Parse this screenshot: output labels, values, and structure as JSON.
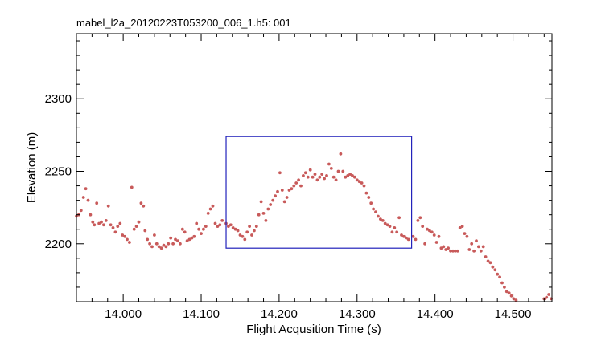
{
  "chart_data": {
    "type": "scatter",
    "title": "mabel_l2a_20120223T053200_006_1.h5: 001",
    "xlabel": "Flight Acqusition Time (s)",
    "ylabel": "Elevation (m)",
    "xlim": [
      13.94,
      14.55
    ],
    "ylim": [
      2160,
      2345
    ],
    "x_ticks": [
      14.0,
      14.1,
      14.2,
      14.3,
      14.4,
      14.5
    ],
    "x_tick_labels": [
      "14.000",
      "14.100",
      "14.200",
      "14.300",
      "14.400",
      "14.500"
    ],
    "y_ticks": [
      2200,
      2250,
      2300
    ],
    "y_tick_labels": [
      "2200",
      "2250",
      "2300"
    ],
    "grid": false,
    "marker_color": "#c85a5a",
    "box_color": "#2222bb",
    "selection_box": {
      "x0": 14.132,
      "x1": 14.37,
      "y0": 2197,
      "y1": 2274
    },
    "points": [
      [
        13.94,
        2219
      ],
      [
        13.943,
        2220
      ],
      [
        13.946,
        2223
      ],
      [
        13.949,
        2232
      ],
      [
        13.952,
        2238
      ],
      [
        13.955,
        2230
      ],
      [
        13.958,
        2220
      ],
      [
        13.961,
        2215
      ],
      [
        13.963,
        2213
      ],
      [
        13.966,
        2228
      ],
      [
        13.969,
        2214
      ],
      [
        13.972,
        2215
      ],
      [
        13.975,
        2213
      ],
      [
        13.978,
        2216
      ],
      [
        13.981,
        2226
      ],
      [
        13.984,
        2213
      ],
      [
        13.987,
        2211
      ],
      [
        13.99,
        2208
      ],
      [
        13.993,
        2212
      ],
      [
        13.996,
        2214
      ],
      [
        13.999,
        2206
      ],
      [
        14.002,
        2205
      ],
      [
        14.005,
        2203
      ],
      [
        14.008,
        2201
      ],
      [
        14.011,
        2239
      ],
      [
        14.014,
        2210
      ],
      [
        14.017,
        2212
      ],
      [
        14.02,
        2215
      ],
      [
        14.023,
        2228
      ],
      [
        14.026,
        2226
      ],
      [
        14.028,
        2209
      ],
      [
        14.031,
        2203
      ],
      [
        14.034,
        2200
      ],
      [
        14.037,
        2198
      ],
      [
        14.04,
        2206
      ],
      [
        14.043,
        2200
      ],
      [
        14.046,
        2198
      ],
      [
        14.049,
        2197
      ],
      [
        14.052,
        2199
      ],
      [
        14.055,
        2198
      ],
      [
        14.058,
        2200
      ],
      [
        14.061,
        2204
      ],
      [
        14.064,
        2200
      ],
      [
        14.067,
        2203
      ],
      [
        14.07,
        2202
      ],
      [
        14.073,
        2200
      ],
      [
        14.076,
        2210
      ],
      [
        14.079,
        2208
      ],
      [
        14.082,
        2202
      ],
      [
        14.085,
        2203
      ],
      [
        14.088,
        2204
      ],
      [
        14.091,
        2205
      ],
      [
        14.094,
        2214
      ],
      [
        14.097,
        2210
      ],
      [
        14.1,
        2207
      ],
      [
        14.103,
        2210
      ],
      [
        14.106,
        2212
      ],
      [
        14.109,
        2221
      ],
      [
        14.112,
        2224
      ],
      [
        14.115,
        2226
      ],
      [
        14.118,
        2214
      ],
      [
        14.121,
        2212
      ],
      [
        14.124,
        2213
      ],
      [
        14.127,
        2216
      ],
      [
        14.132,
        2214
      ],
      [
        14.135,
        2212
      ],
      [
        14.138,
        2213
      ],
      [
        14.141,
        2211
      ],
      [
        14.144,
        2210
      ],
      [
        14.147,
        2209
      ],
      [
        14.15,
        2206
      ],
      [
        14.153,
        2205
      ],
      [
        14.156,
        2203
      ],
      [
        14.159,
        2208
      ],
      [
        14.162,
        2212
      ],
      [
        14.165,
        2206
      ],
      [
        14.168,
        2209
      ],
      [
        14.171,
        2212
      ],
      [
        14.174,
        2220
      ],
      [
        14.177,
        2229
      ],
      [
        14.18,
        2221
      ],
      [
        14.183,
        2216
      ],
      [
        14.186,
        2224
      ],
      [
        14.189,
        2227
      ],
      [
        14.192,
        2230
      ],
      [
        14.195,
        2233
      ],
      [
        14.198,
        2236
      ],
      [
        14.201,
        2249
      ],
      [
        14.204,
        2237
      ],
      [
        14.207,
        2229
      ],
      [
        14.21,
        2232
      ],
      [
        14.213,
        2237
      ],
      [
        14.216,
        2238
      ],
      [
        14.219,
        2240
      ],
      [
        14.222,
        2242
      ],
      [
        14.225,
        2244
      ],
      [
        14.228,
        2240
      ],
      [
        14.231,
        2247
      ],
      [
        14.234,
        2249
      ],
      [
        14.237,
        2246
      ],
      [
        14.24,
        2251
      ],
      [
        14.243,
        2246
      ],
      [
        14.246,
        2248
      ],
      [
        14.249,
        2244
      ],
      [
        14.252,
        2246
      ],
      [
        14.255,
        2248
      ],
      [
        14.258,
        2245
      ],
      [
        14.261,
        2247
      ],
      [
        14.264,
        2255
      ],
      [
        14.267,
        2252
      ],
      [
        14.27,
        2246
      ],
      [
        14.273,
        2244
      ],
      [
        14.276,
        2250
      ],
      [
        14.279,
        2262
      ],
      [
        14.282,
        2250
      ],
      [
        14.285,
        2246
      ],
      [
        14.288,
        2247
      ],
      [
        14.291,
        2248
      ],
      [
        14.294,
        2247
      ],
      [
        14.297,
        2246
      ],
      [
        14.3,
        2244
      ],
      [
        14.303,
        2243
      ],
      [
        14.306,
        2242
      ],
      [
        14.309,
        2240
      ],
      [
        14.312,
        2235
      ],
      [
        14.315,
        2232
      ],
      [
        14.318,
        2228
      ],
      [
        14.321,
        2224
      ],
      [
        14.324,
        2222
      ],
      [
        14.327,
        2219
      ],
      [
        14.33,
        2217
      ],
      [
        14.333,
        2216
      ],
      [
        14.336,
        2214
      ],
      [
        14.339,
        2213
      ],
      [
        14.342,
        2212
      ],
      [
        14.345,
        2208
      ],
      [
        14.348,
        2211
      ],
      [
        14.351,
        2208
      ],
      [
        14.354,
        2218
      ],
      [
        14.357,
        2206
      ],
      [
        14.36,
        2205
      ],
      [
        14.363,
        2204
      ],
      [
        14.366,
        2203
      ],
      [
        14.372,
        2205
      ],
      [
        14.375,
        2203
      ],
      [
        14.378,
        2216
      ],
      [
        14.381,
        2218
      ],
      [
        14.384,
        2212
      ],
      [
        14.387,
        2200
      ],
      [
        14.39,
        2210
      ],
      [
        14.393,
        2209
      ],
      [
        14.396,
        2208
      ],
      [
        14.399,
        2206
      ],
      [
        14.402,
        2201
      ],
      [
        14.405,
        2205
      ],
      [
        14.408,
        2197
      ],
      [
        14.411,
        2198
      ],
      [
        14.414,
        2196
      ],
      [
        14.417,
        2197
      ],
      [
        14.42,
        2195
      ],
      [
        14.423,
        2195
      ],
      [
        14.426,
        2195
      ],
      [
        14.429,
        2195
      ],
      [
        14.432,
        2211
      ],
      [
        14.435,
        2212
      ],
      [
        14.438,
        2207
      ],
      [
        14.441,
        2205
      ],
      [
        14.444,
        2196
      ],
      [
        14.447,
        2200
      ],
      [
        14.45,
        2195
      ],
      [
        14.453,
        2202
      ],
      [
        14.456,
        2198
      ],
      [
        14.459,
        2195
      ],
      [
        14.462,
        2198
      ],
      [
        14.465,
        2191
      ],
      [
        14.468,
        2188
      ],
      [
        14.471,
        2187
      ],
      [
        14.474,
        2184
      ],
      [
        14.477,
        2182
      ],
      [
        14.48,
        2179
      ],
      [
        14.483,
        2177
      ],
      [
        14.486,
        2173
      ],
      [
        14.489,
        2170
      ],
      [
        14.492,
        2167
      ],
      [
        14.495,
        2166
      ],
      [
        14.498,
        2164
      ],
      [
        14.501,
        2162
      ],
      [
        14.504,
        2161
      ],
      [
        14.54,
        2162
      ],
      [
        14.543,
        2163
      ],
      [
        14.546,
        2165
      ],
      [
        14.549,
        2162
      ]
    ]
  }
}
